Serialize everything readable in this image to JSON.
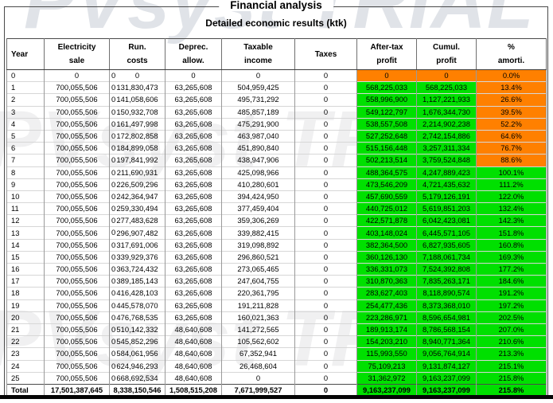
{
  "watermark": {
    "text": "PVsyst TRIAL"
  },
  "header": {
    "title": "Financial analysis",
    "subtitle": "Detailed economic results (ktk)"
  },
  "colors": {
    "positive": "#00E000",
    "negative": "#FF8000"
  },
  "table": {
    "columns": [
      {
        "id": "year",
        "line1": "Year",
        "line2": ""
      },
      {
        "id": "sale",
        "line1": "Electricity",
        "line2": "sale"
      },
      {
        "id": "run",
        "line1": "Run.",
        "line2": "costs"
      },
      {
        "id": "deprec",
        "line1": "Deprec.",
        "line2": "allow."
      },
      {
        "id": "taxable",
        "line1": "Taxable",
        "line2": "income"
      },
      {
        "id": "taxes",
        "line1": "Taxes",
        "line2": ""
      },
      {
        "id": "profit",
        "line1": "After-tax",
        "line2": "profit"
      },
      {
        "id": "cumul",
        "line1": "Cumul.",
        "line2": "profit"
      },
      {
        "id": "amorti",
        "line1": "%",
        "line2": "amorti."
      }
    ],
    "rows": [
      {
        "year": "0",
        "sale": "0",
        "run0": "0",
        "run": "0",
        "deprec": "0",
        "taxable": "0",
        "taxes": "0",
        "profit": "0",
        "cumul": "0",
        "amorti": "0.0%",
        "profit_bg": "neg",
        "amorti_bg": "neg"
      },
      {
        "year": "1",
        "sale": "700,055,506",
        "run0": "0",
        "run": "131,830,473",
        "deprec": "63,265,608",
        "taxable": "504,959,425",
        "taxes": "0",
        "profit": "568,225,033",
        "cumul": "568,225,033",
        "amorti": "13.4%",
        "profit_bg": "pos",
        "amorti_bg": "neg"
      },
      {
        "year": "2",
        "sale": "700,055,506",
        "run0": "0",
        "run": "141,058,606",
        "deprec": "63,265,608",
        "taxable": "495,731,292",
        "taxes": "0",
        "profit": "558,996,900",
        "cumul": "1,127,221,933",
        "amorti": "26.6%",
        "profit_bg": "pos",
        "amorti_bg": "neg"
      },
      {
        "year": "3",
        "sale": "700,055,506",
        "run0": "0",
        "run": "150,932,708",
        "deprec": "63,265,608",
        "taxable": "485,857,189",
        "taxes": "0",
        "profit": "549,122,797",
        "cumul": "1,676,344,730",
        "amorti": "39.5%",
        "profit_bg": "pos",
        "amorti_bg": "neg"
      },
      {
        "year": "4",
        "sale": "700,055,506",
        "run0": "0",
        "run": "161,497,998",
        "deprec": "63,265,608",
        "taxable": "475,291,900",
        "taxes": "0",
        "profit": "538,557,508",
        "cumul": "2,214,902,238",
        "amorti": "52.2%",
        "profit_bg": "pos",
        "amorti_bg": "neg"
      },
      {
        "year": "5",
        "sale": "700,055,506",
        "run0": "0",
        "run": "172,802,858",
        "deprec": "63,265,608",
        "taxable": "463,987,040",
        "taxes": "0",
        "profit": "527,252,648",
        "cumul": "2,742,154,886",
        "amorti": "64.6%",
        "profit_bg": "pos",
        "amorti_bg": "neg"
      },
      {
        "year": "6",
        "sale": "700,055,506",
        "run0": "0",
        "run": "184,899,058",
        "deprec": "63,265,608",
        "taxable": "451,890,840",
        "taxes": "0",
        "profit": "515,156,448",
        "cumul": "3,257,311,334",
        "amorti": "76.7%",
        "profit_bg": "pos",
        "amorti_bg": "neg"
      },
      {
        "year": "7",
        "sale": "700,055,506",
        "run0": "0",
        "run": "197,841,992",
        "deprec": "63,265,608",
        "taxable": "438,947,906",
        "taxes": "0",
        "profit": "502,213,514",
        "cumul": "3,759,524,848",
        "amorti": "88.6%",
        "profit_bg": "pos",
        "amorti_bg": "neg"
      },
      {
        "year": "8",
        "sale": "700,055,506",
        "run0": "0",
        "run": "211,690,931",
        "deprec": "63,265,608",
        "taxable": "425,098,966",
        "taxes": "0",
        "profit": "488,364,575",
        "cumul": "4,247,889,423",
        "amorti": "100.1%",
        "profit_bg": "pos",
        "amorti_bg": "pos"
      },
      {
        "year": "9",
        "sale": "700,055,506",
        "run0": "0",
        "run": "226,509,296",
        "deprec": "63,265,608",
        "taxable": "410,280,601",
        "taxes": "0",
        "profit": "473,546,209",
        "cumul": "4,721,435,632",
        "amorti": "111.2%",
        "profit_bg": "pos",
        "amorti_bg": "pos"
      },
      {
        "year": "10",
        "sale": "700,055,506",
        "run0": "0",
        "run": "242,364,947",
        "deprec": "63,265,608",
        "taxable": "394,424,950",
        "taxes": "0",
        "profit": "457,690,559",
        "cumul": "5,179,126,191",
        "amorti": "122.0%",
        "profit_bg": "pos",
        "amorti_bg": "pos"
      },
      {
        "year": "11",
        "sale": "700,055,506",
        "run0": "0",
        "run": "259,330,494",
        "deprec": "63,265,608",
        "taxable": "377,459,404",
        "taxes": "0",
        "profit": "440,725,012",
        "cumul": "5,619,851,203",
        "amorti": "132.4%",
        "profit_bg": "pos",
        "amorti_bg": "pos"
      },
      {
        "year": "12",
        "sale": "700,055,506",
        "run0": "0",
        "run": "277,483,628",
        "deprec": "63,265,608",
        "taxable": "359,306,269",
        "taxes": "0",
        "profit": "422,571,878",
        "cumul": "6,042,423,081",
        "amorti": "142.3%",
        "profit_bg": "pos",
        "amorti_bg": "pos"
      },
      {
        "year": "13",
        "sale": "700,055,506",
        "run0": "0",
        "run": "296,907,482",
        "deprec": "63,265,608",
        "taxable": "339,882,415",
        "taxes": "0",
        "profit": "403,148,024",
        "cumul": "6,445,571,105",
        "amorti": "151.8%",
        "profit_bg": "pos",
        "amorti_bg": "pos"
      },
      {
        "year": "14",
        "sale": "700,055,506",
        "run0": "0",
        "run": "317,691,006",
        "deprec": "63,265,608",
        "taxable": "319,098,892",
        "taxes": "0",
        "profit": "382,364,500",
        "cumul": "6,827,935,605",
        "amorti": "160.8%",
        "profit_bg": "pos",
        "amorti_bg": "pos"
      },
      {
        "year": "15",
        "sale": "700,055,506",
        "run0": "0",
        "run": "339,929,376",
        "deprec": "63,265,608",
        "taxable": "296,860,521",
        "taxes": "0",
        "profit": "360,126,130",
        "cumul": "7,188,061,734",
        "amorti": "169.3%",
        "profit_bg": "pos",
        "amorti_bg": "pos"
      },
      {
        "year": "16",
        "sale": "700,055,506",
        "run0": "0",
        "run": "363,724,432",
        "deprec": "63,265,608",
        "taxable": "273,065,465",
        "taxes": "0",
        "profit": "336,331,073",
        "cumul": "7,524,392,808",
        "amorti": "177.2%",
        "profit_bg": "pos",
        "amorti_bg": "pos"
      },
      {
        "year": "17",
        "sale": "700,055,506",
        "run0": "0",
        "run": "389,185,143",
        "deprec": "63,265,608",
        "taxable": "247,604,755",
        "taxes": "0",
        "profit": "310,870,363",
        "cumul": "7,835,263,171",
        "amorti": "184.6%",
        "profit_bg": "pos",
        "amorti_bg": "pos"
      },
      {
        "year": "18",
        "sale": "700,055,506",
        "run0": "0",
        "run": "416,428,103",
        "deprec": "63,265,608",
        "taxable": "220,361,795",
        "taxes": "0",
        "profit": "283,627,403",
        "cumul": "8,118,890,574",
        "amorti": "191.2%",
        "profit_bg": "pos",
        "amorti_bg": "pos"
      },
      {
        "year": "19",
        "sale": "700,055,506",
        "run0": "0",
        "run": "445,578,070",
        "deprec": "63,265,608",
        "taxable": "191,211,828",
        "taxes": "0",
        "profit": "254,477,436",
        "cumul": "8,373,368,010",
        "amorti": "197.2%",
        "profit_bg": "pos",
        "amorti_bg": "pos"
      },
      {
        "year": "20",
        "sale": "700,055,506",
        "run0": "0",
        "run": "476,768,535",
        "deprec": "63,265,608",
        "taxable": "160,021,363",
        "taxes": "0",
        "profit": "223,286,971",
        "cumul": "8,596,654,981",
        "amorti": "202.5%",
        "profit_bg": "pos",
        "amorti_bg": "pos"
      },
      {
        "year": "21",
        "sale": "700,055,506",
        "run0": "0",
        "run": "510,142,332",
        "deprec": "48,640,608",
        "taxable": "141,272,565",
        "taxes": "0",
        "profit": "189,913,174",
        "cumul": "8,786,568,154",
        "amorti": "207.0%",
        "profit_bg": "pos",
        "amorti_bg": "pos"
      },
      {
        "year": "22",
        "sale": "700,055,506",
        "run0": "0",
        "run": "545,852,296",
        "deprec": "48,640,608",
        "taxable": "105,562,602",
        "taxes": "0",
        "profit": "154,203,210",
        "cumul": "8,940,771,364",
        "amorti": "210.6%",
        "profit_bg": "pos",
        "amorti_bg": "pos"
      },
      {
        "year": "23",
        "sale": "700,055,506",
        "run0": "0",
        "run": "584,061,956",
        "deprec": "48,640,608",
        "taxable": "67,352,941",
        "taxes": "0",
        "profit": "115,993,550",
        "cumul": "9,056,764,914",
        "amorti": "213.3%",
        "profit_bg": "pos",
        "amorti_bg": "pos"
      },
      {
        "year": "24",
        "sale": "700,055,506",
        "run0": "0",
        "run": "624,946,293",
        "deprec": "48,640,608",
        "taxable": "26,468,604",
        "taxes": "0",
        "profit": "75,109,213",
        "cumul": "9,131,874,127",
        "amorti": "215.1%",
        "profit_bg": "pos",
        "amorti_bg": "pos"
      },
      {
        "year": "25",
        "sale": "700,055,506",
        "run0": "0",
        "run": "668,692,534",
        "deprec": "48,640,608",
        "taxable": "0",
        "taxes": "0",
        "profit": "31,362,972",
        "cumul": "9,163,237,099",
        "amorti": "215.8%",
        "profit_bg": "pos",
        "amorti_bg": "pos"
      }
    ],
    "total": {
      "year": "Total",
      "sale": "17,501,387,645",
      "run": "8,338,150,546",
      "deprec": "1,508,515,208",
      "taxable": "7,671,999,527",
      "taxes": "0",
      "profit": "9,163,237,099",
      "cumul": "9,163,237,099",
      "amorti": "215.8%",
      "profit_bg": "pos",
      "amorti_bg": "pos"
    }
  }
}
